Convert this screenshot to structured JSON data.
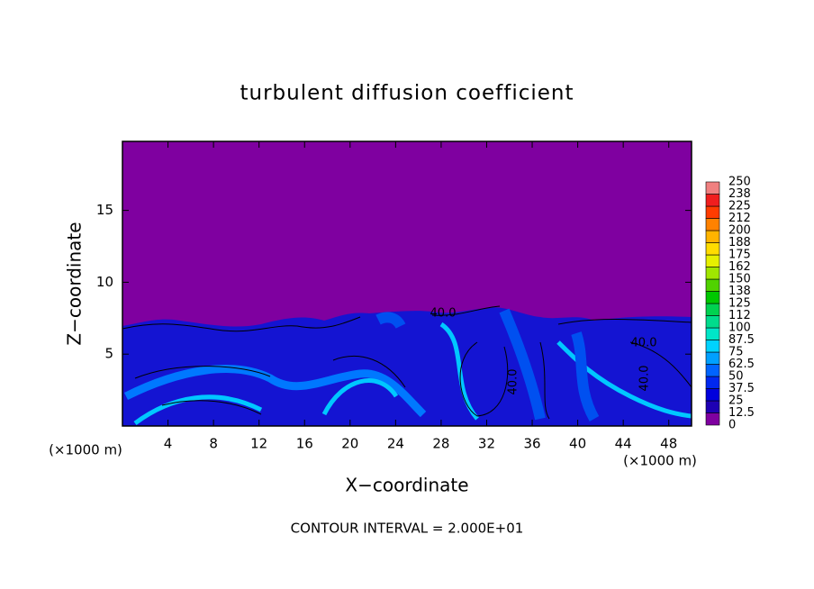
{
  "chart_data": {
    "type": "contour",
    "title": "turbulent diffusion coefficient",
    "xlabel": "X−coordinate",
    "ylabel": "Z−coordinate",
    "x_unit": "(×1000 m)",
    "y_unit": "(×1000 m)",
    "footer": "CONTOUR INTERVAL = 2.000E+01",
    "xlim": [
      0,
      50
    ],
    "xticks": [
      4,
      8,
      12,
      16,
      20,
      24,
      28,
      32,
      36,
      40,
      44,
      48
    ],
    "ylim": [
      0,
      19.8
    ],
    "yticks": [
      5,
      10,
      15
    ],
    "contour_labels": [
      "40.0",
      "40.0",
      "40.0",
      "40.0"
    ],
    "levels": [
      0,
      12.5,
      25,
      37.5,
      50,
      62.5,
      75,
      87.5,
      100,
      112,
      125,
      138,
      150,
      162,
      175,
      188,
      200,
      212,
      225,
      238,
      250
    ],
    "level_colors": [
      "#7f00a0",
      "#1e00b4",
      "#0000dc",
      "#0028f0",
      "#0064ff",
      "#00a0ff",
      "#00d2ff",
      "#00e6c8",
      "#00dc8c",
      "#00d250",
      "#00c800",
      "#50d200",
      "#a0e600",
      "#e6f000",
      "#ffdc00",
      "#ffb400",
      "#ff8200",
      "#ff3c00",
      "#f01e1e",
      "#f08080"
    ]
  }
}
